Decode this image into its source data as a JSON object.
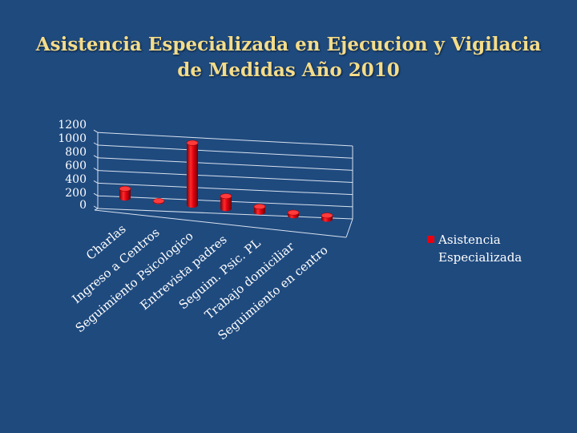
{
  "slide": {
    "title_line1": "Asistencia Especializada en Ejecucion y Vigilacia",
    "title_line2": "de Medidas Año 2010"
  },
  "chart_data": {
    "type": "bar",
    "style": "3d-cylinder",
    "categories": [
      "Charlas",
      "Ingreso a Centros",
      "Seguimiento Psicologico",
      "Entrevista padres",
      "Seguim. Psic. PL",
      "Trabajo domiciliar",
      "Seguimiento en centro"
    ],
    "series": [
      {
        "name": "Asistencia Especializada",
        "color": "#e8000f",
        "values": [
          150,
          10,
          1000,
          200,
          90,
          50,
          60
        ]
      }
    ],
    "y_ticks": [
      "0",
      "200",
      "400",
      "600",
      "800",
      "1000",
      "1200"
    ],
    "ylim": [
      0,
      1200
    ],
    "grid": true,
    "legend_position": "right",
    "legend_text": [
      "Asistencia",
      "Especializada"
    ]
  }
}
